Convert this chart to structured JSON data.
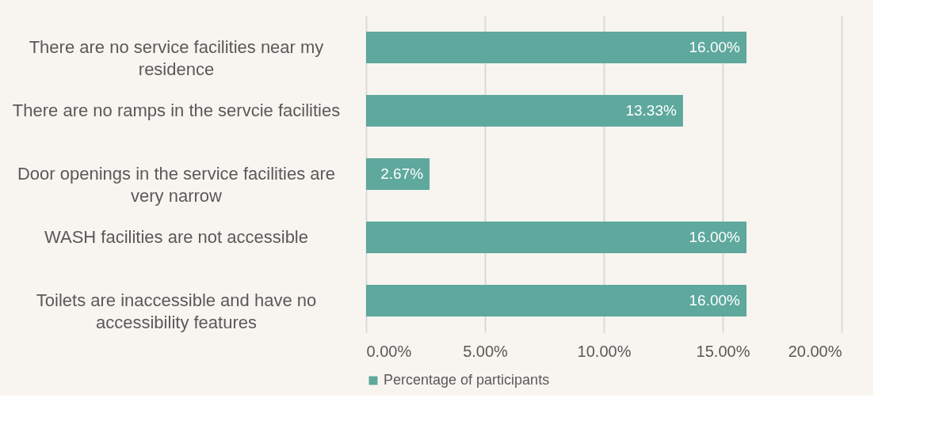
{
  "chart_data": {
    "type": "bar",
    "orientation": "horizontal",
    "categories": [
      "There are no service facilities near my residence",
      "There are no ramps in the servcie facilities",
      "Door openings in the service facilities are very narrow",
      "WASH facilities are not accessible",
      "Toilets are inaccessible and have no accessibility features"
    ],
    "series": [
      {
        "name": "Percentage of participants",
        "color": "#5ea89d",
        "values": [
          16,
          13.33,
          2.67,
          16,
          16
        ],
        "value_labels": [
          "16.00%",
          "13.33%",
          "2.67%",
          "16.00%",
          "16.00%"
        ]
      }
    ],
    "xlim": [
      0,
      20
    ],
    "xticks": [
      {
        "value": 0,
        "label": "0.00%"
      },
      {
        "value": 5,
        "label": "5.00%"
      },
      {
        "value": 10,
        "label": "10.00%"
      },
      {
        "value": 15,
        "label": "15.00%"
      },
      {
        "value": 20,
        "label": "20.00%"
      }
    ],
    "grid": "x",
    "legend": "bottom"
  }
}
